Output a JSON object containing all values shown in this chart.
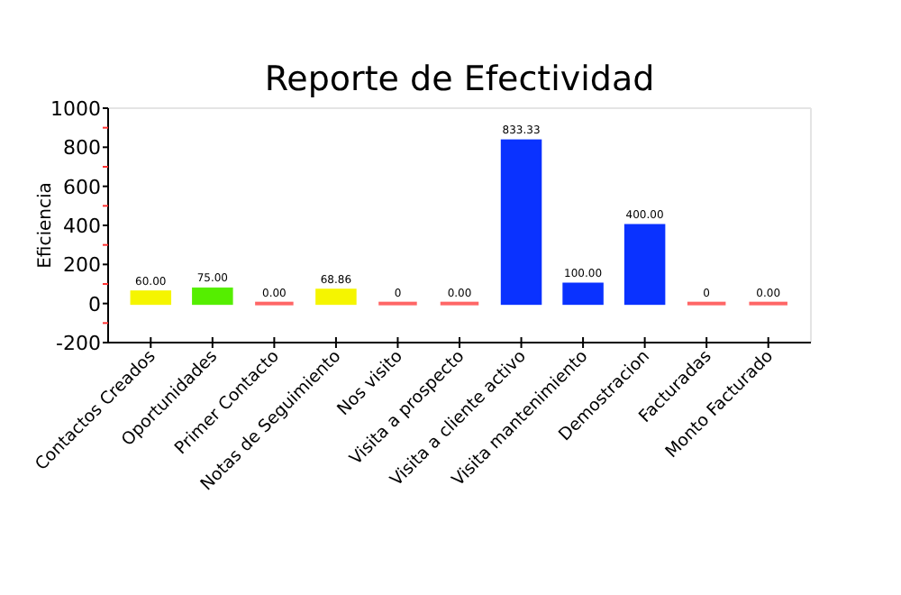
{
  "chart_data": {
    "type": "bar",
    "title": "Reporte de Efectividad",
    "ylabel": "Eficiencia",
    "categories": [
      "Contactos Creados",
      "Oportunidades",
      "Primer Contacto",
      "Notas de Seguimiento",
      "Nos visito",
      "Visita a prospecto",
      "Visita a cliente activo",
      "Visita mantenimiento",
      "Demostracion",
      "Facturadas",
      "Monto Facturado"
    ],
    "values": [
      60,
      75,
      0,
      68.86,
      0,
      0,
      833.33,
      100,
      400,
      0,
      0
    ],
    "colors": [
      "#f5f500",
      "#55ee00",
      "#ff6666",
      "#f5f500",
      "#ff6666",
      "#ff6666",
      "#0a32ff",
      "#0a32ff",
      "#0a32ff",
      "#ff6666",
      "#ff6666"
    ],
    "value_labels": [
      "60.00",
      "75.00",
      "0.00",
      "68.86",
      "0",
      "0.00",
      "833.33",
      "100.00",
      "400.00",
      "0",
      "0.00"
    ],
    "ylim": [
      -200,
      1000
    ],
    "yticks": [
      -200,
      {
        "value": -100,
        "label": null
      },
      0,
      {
        "value": 100,
        "label": null
      },
      200,
      {
        "value": 300,
        "label": null
      },
      400,
      {
        "value": 500,
        "label": null
      },
      600,
      {
        "value": 700,
        "label": null
      },
      800,
      {
        "value": 900,
        "label": null
      },
      1000
    ],
    "grid": false
  }
}
